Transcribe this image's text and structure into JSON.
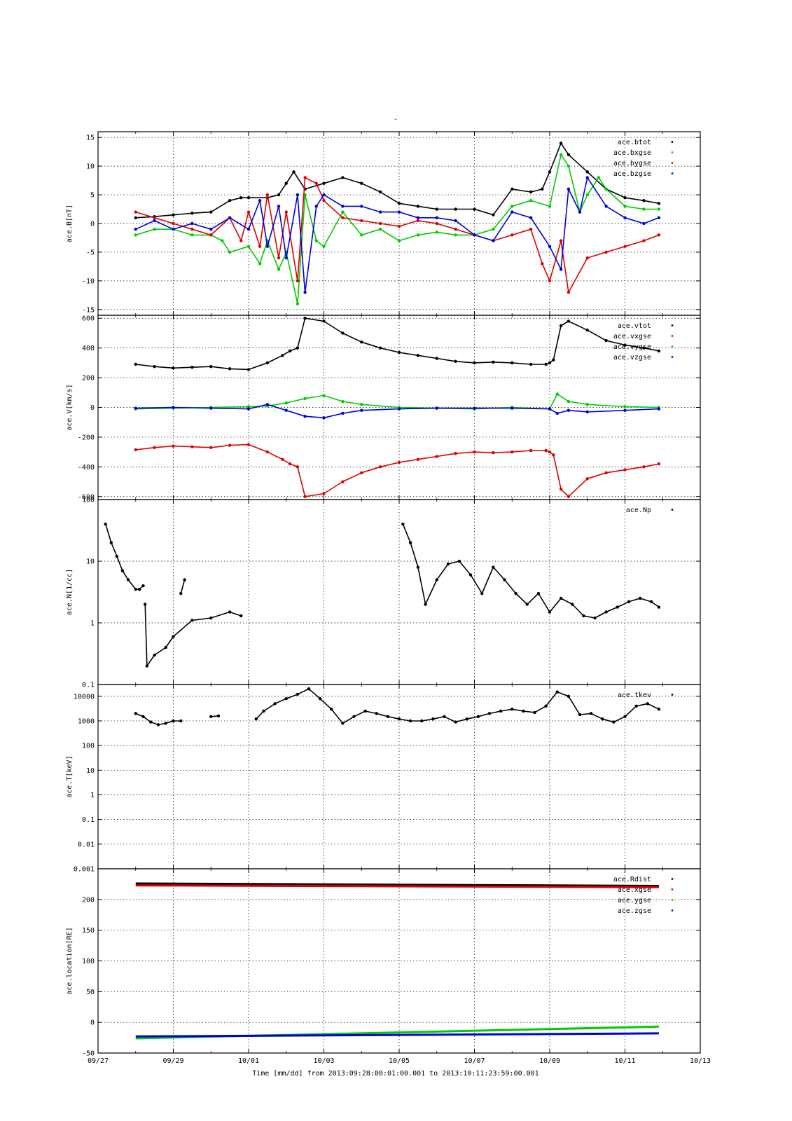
{
  "figure": {
    "title": "-",
    "xlabel": "Time [mm/dd]  from 2013:09:28:00:01:00.001  to  2013:10:11:23:59:00.001",
    "x_range": [
      "09/27",
      "10/13"
    ],
    "x_ticks": [
      "09/27",
      "09/29",
      "10/01",
      "10/03",
      "10/05",
      "10/07",
      "10/09",
      "10/11",
      "10/13"
    ],
    "grid": true,
    "legend_position": "top-right"
  },
  "chart_data": [
    {
      "type": "scatter",
      "ylabel": "ace.B[nT]",
      "ylim": [
        -16,
        16
      ],
      "yscale": "linear",
      "yticks": [
        -15,
        -10,
        -5,
        0,
        5,
        10,
        15
      ],
      "grid": true,
      "legend_position": "top-right",
      "series": [
        {
          "name": "ace.btot",
          "color": "#000000",
          "x": [
            1.0,
            1.5,
            2.0,
            2.5,
            3.0,
            3.5,
            3.8,
            4.0,
            4.5,
            4.8,
            5.0,
            5.2,
            5.5,
            6.0,
            6.5,
            7.0,
            7.5,
            8.0,
            8.5,
            9.0,
            9.5,
            10.0,
            10.5,
            11.0,
            11.5,
            11.8,
            12.0,
            12.3,
            12.5,
            13.0,
            13.5,
            14.0,
            14.5,
            14.9
          ],
          "y": [
            1,
            1.2,
            1.5,
            1.8,
            2.0,
            4,
            4.5,
            4.5,
            4.5,
            5,
            7,
            9,
            6,
            7,
            8,
            7,
            5.5,
            3.5,
            3,
            2.5,
            2.5,
            2.5,
            1.5,
            6,
            5.5,
            6,
            9,
            14,
            12,
            9,
            6,
            4.5,
            4,
            3.5
          ]
        },
        {
          "name": "ace.bxgse",
          "color": "#00cc00",
          "x": [
            1.0,
            1.5,
            2.0,
            2.5,
            3.0,
            3.3,
            3.5,
            4.0,
            4.3,
            4.5,
            4.8,
            5.0,
            5.3,
            5.5,
            5.8,
            6.0,
            6.5,
            7.0,
            7.5,
            8.0,
            8.5,
            9.0,
            9.5,
            10.0,
            10.5,
            11.0,
            11.5,
            12.0,
            12.3,
            12.5,
            12.8,
            13.0,
            13.3,
            13.5,
            14.0,
            14.5,
            14.9
          ],
          "y": [
            -2,
            -1,
            -1,
            -2,
            -2,
            -3,
            -5,
            -4,
            -7,
            -3,
            -8,
            -5,
            -14,
            5,
            -3,
            -4,
            2,
            -2,
            -1,
            -3,
            -2,
            -1.5,
            -2,
            -2,
            -1,
            3,
            4,
            3,
            12,
            10,
            2,
            5,
            8,
            6,
            3,
            2.5,
            2.5
          ]
        },
        {
          "name": "ace.bygse",
          "color": "#dd0000",
          "x": [
            1.0,
            1.5,
            2.0,
            2.5,
            3.0,
            3.5,
            3.8,
            4.0,
            4.3,
            4.5,
            4.8,
            5.0,
            5.3,
            5.5,
            5.8,
            6.0,
            6.5,
            7.0,
            7.5,
            8.0,
            8.5,
            9.0,
            9.5,
            10.0,
            10.5,
            11.0,
            11.5,
            11.8,
            12.0,
            12.3,
            12.5,
            13.0,
            13.5,
            14.0,
            14.5,
            14.9
          ],
          "y": [
            2,
            1,
            0,
            -1,
            -2,
            1,
            -3,
            2,
            -4,
            5,
            -6,
            2,
            -10,
            8,
            7,
            4,
            1,
            0.5,
            0,
            -0.5,
            0.5,
            0,
            -1,
            -2,
            -3,
            -2,
            -1,
            -7,
            -10,
            -3,
            -12,
            -6,
            -5,
            -4,
            -3,
            -2
          ]
        },
        {
          "name": "ace.bzgse",
          "color": "#0000dd",
          "x": [
            1.0,
            1.5,
            2.0,
            2.5,
            3.0,
            3.5,
            4.0,
            4.3,
            4.5,
            4.8,
            5.0,
            5.3,
            5.5,
            5.8,
            6.0,
            6.5,
            7.0,
            7.5,
            8.0,
            8.5,
            9.0,
            9.5,
            10.0,
            10.5,
            11.0,
            11.5,
            12.0,
            12.3,
            12.5,
            12.8,
            13.0,
            13.5,
            14.0,
            14.5,
            14.9
          ],
          "y": [
            -1,
            0.5,
            -1,
            0,
            -1,
            1,
            -1,
            4,
            -4,
            3,
            -6,
            5,
            -12,
            3,
            5,
            3,
            3,
            2,
            2,
            1,
            1,
            0.5,
            -2,
            -3,
            2,
            1,
            -4,
            -8,
            6,
            2,
            8,
            3,
            1,
            0,
            1
          ]
        }
      ]
    },
    {
      "type": "scatter",
      "ylabel": "ace.V[km/s]",
      "ylim": [
        -620,
        620
      ],
      "yscale": "linear",
      "yticks": [
        -600,
        -400,
        -200,
        0,
        200,
        400,
        600
      ],
      "grid": true,
      "legend_position": "top-right",
      "series": [
        {
          "name": "ace.vtot",
          "color": "#000000",
          "x": [
            1.0,
            1.5,
            2.0,
            2.5,
            3.0,
            3.5,
            4.0,
            4.5,
            4.9,
            5.1,
            5.3,
            5.5,
            6.0,
            6.5,
            7.0,
            7.5,
            8.0,
            8.5,
            9.0,
            9.5,
            10.0,
            10.5,
            11.0,
            11.5,
            11.9,
            12.0,
            12.1,
            12.3,
            12.5,
            13.0,
            13.5,
            14.0,
            14.5,
            14.9
          ],
          "y": [
            290,
            275,
            265,
            270,
            275,
            260,
            255,
            300,
            350,
            380,
            400,
            600,
            580,
            500,
            440,
            400,
            370,
            350,
            330,
            310,
            300,
            305,
            300,
            290,
            290,
            300,
            320,
            550,
            580,
            520,
            450,
            420,
            400,
            380
          ]
        },
        {
          "name": "ace.vxgse",
          "color": "#dd0000",
          "x": [
            1.0,
            1.5,
            2.0,
            2.5,
            3.0,
            3.5,
            4.0,
            4.5,
            4.9,
            5.1,
            5.3,
            5.5,
            6.0,
            6.5,
            7.0,
            7.5,
            8.0,
            8.5,
            9.0,
            9.5,
            10.0,
            10.5,
            11.0,
            11.5,
            11.9,
            12.0,
            12.1,
            12.3,
            12.5,
            13.0,
            13.5,
            14.0,
            14.5,
            14.9
          ],
          "y": [
            -285,
            -270,
            -260,
            -265,
            -270,
            -255,
            -250,
            -300,
            -350,
            -380,
            -400,
            -600,
            -580,
            -500,
            -440,
            -400,
            -370,
            -350,
            -330,
            -310,
            -300,
            -305,
            -300,
            -290,
            -290,
            -300,
            -320,
            -550,
            -600,
            -480,
            -440,
            -420,
            -400,
            -380
          ]
        },
        {
          "name": "ace.vygse",
          "color": "#00cc00",
          "x": [
            1.0,
            2.0,
            3.0,
            4.0,
            4.5,
            5.0,
            5.5,
            6.0,
            6.5,
            7.0,
            8.0,
            9.0,
            10.0,
            11.0,
            12.0,
            12.2,
            12.5,
            13.0,
            14.0,
            14.9
          ],
          "y": [
            -10,
            -5,
            0,
            5,
            10,
            30,
            60,
            80,
            40,
            20,
            0,
            -5,
            -10,
            0,
            -10,
            90,
            40,
            20,
            5,
            0
          ]
        },
        {
          "name": "ace.vzgse",
          "color": "#0000dd",
          "x": [
            1.0,
            2.0,
            3.0,
            4.0,
            4.5,
            5.0,
            5.5,
            6.0,
            6.5,
            7.0,
            8.0,
            9.0,
            10.0,
            11.0,
            12.0,
            12.2,
            12.5,
            13.0,
            14.0,
            14.9
          ],
          "y": [
            -5,
            0,
            -5,
            -10,
            20,
            -20,
            -60,
            -70,
            -40,
            -20,
            -10,
            -5,
            -5,
            -5,
            -10,
            -40,
            -20,
            -30,
            -20,
            -10
          ]
        }
      ]
    },
    {
      "type": "scatter",
      "ylabel": "ace.N[1/cc]",
      "ylim": [
        0.1,
        100
      ],
      "yscale": "log",
      "yticks": [
        "0.1",
        "1",
        "10",
        "100"
      ],
      "grid": true,
      "legend_position": "top-right",
      "series": [
        {
          "name": "ace.Np",
          "color": "#000000",
          "segments": [
            {
              "x": [
                0.2,
                0.35,
                0.5,
                0.65,
                0.8,
                1.0,
                1.1,
                1.2
              ],
              "y": [
                40,
                20,
                12,
                7,
                5,
                3.5,
                3.5,
                4
              ]
            },
            {
              "x": [
                1.25,
                1.3,
                1.5,
                1.8,
                2.0,
                2.5,
                3.0,
                3.5,
                3.8
              ],
              "y": [
                2,
                0.2,
                0.3,
                0.4,
                0.6,
                1.1,
                1.2,
                1.5,
                1.3
              ]
            },
            {
              "x": [
                2.2,
                2.3
              ],
              "y": [
                3,
                5
              ]
            },
            {
              "x": [
                8.1,
                8.3,
                8.5,
                8.7,
                9.0,
                9.3,
                9.6,
                9.9,
                10.2,
                10.5,
                10.8,
                11.1,
                11.4,
                11.7,
                12.0,
                12.3,
                12.6,
                12.9,
                13.2,
                13.5,
                13.8,
                14.1,
                14.4,
                14.7,
                14.9
              ],
              "y": [
                40,
                20,
                8,
                2,
                5,
                9,
                10,
                6,
                3,
                8,
                5,
                3,
                2,
                3,
                1.5,
                2.5,
                2,
                1.3,
                1.2,
                1.5,
                1.8,
                2.2,
                2.5,
                2.2,
                1.8
              ]
            }
          ]
        }
      ]
    },
    {
      "type": "scatter",
      "ylabel": "ace.T[keV]",
      "ylim": [
        0.001,
        30000
      ],
      "yscale": "log",
      "yticks": [
        "0.001",
        "0.01",
        "0.1",
        "1",
        "10",
        "100",
        "1000",
        "10000"
      ],
      "grid": true,
      "legend_position": "top-right",
      "series": [
        {
          "name": "ace.tkev",
          "color": "#000000",
          "segments": [
            {
              "x": [
                1.0,
                1.2,
                1.4,
                1.6,
                1.8,
                2.0,
                2.2
              ],
              "y": [
                2000,
                1500,
                900,
                700,
                800,
                1000,
                1000
              ]
            },
            {
              "x": [
                3.0,
                3.2
              ],
              "y": [
                1500,
                1600
              ]
            },
            {
              "x": [
                4.2,
                4.4,
                4.7,
                5.0,
                5.3,
                5.6,
                5.9,
                6.2,
                6.5,
                6.8,
                7.1,
                7.4,
                7.7,
                8.0,
                8.3,
                8.6,
                8.9,
                9.2,
                9.5,
                9.8,
                10.1,
                10.4,
                10.7,
                11.0,
                11.3,
                11.6,
                11.9,
                12.2,
                12.5,
                12.8,
                13.1,
                13.4,
                13.7,
                14.0,
                14.3,
                14.6,
                14.9
              ],
              "y": [
                1200,
                2500,
                5000,
                8000,
                12000,
                20000,
                8000,
                3000,
                800,
                1500,
                2500,
                2000,
                1500,
                1200,
                1000,
                1000,
                1200,
                1500,
                900,
                1200,
                1500,
                2000,
                2500,
                3000,
                2500,
                2200,
                4000,
                15000,
                10000,
                1800,
                2000,
                1200,
                900,
                1500,
                4000,
                5000,
                3000
              ]
            }
          ]
        }
      ]
    },
    {
      "type": "line",
      "ylabel": "ace.location[RE]",
      "ylim": [
        -50,
        250
      ],
      "yscale": "linear",
      "yticks": [
        -50,
        0,
        50,
        100,
        150,
        200
      ],
      "grid": true,
      "legend_position": "top-right",
      "series": [
        {
          "name": "ace.Rdist",
          "color": "#000000",
          "x": [
            1.0,
            14.9
          ],
          "y": [
            226,
            222
          ]
        },
        {
          "name": "ace.xgse",
          "color": "#dd0000",
          "x": [
            1.0,
            14.9
          ],
          "y": [
            223,
            220
          ]
        },
        {
          "name": "ace.ygse",
          "color": "#00cc00",
          "x": [
            1.0,
            14.9
          ],
          "y": [
            -26,
            -7
          ]
        },
        {
          "name": "ace.zgse",
          "color": "#0000dd",
          "x": [
            1.0,
            14.9
          ],
          "y": [
            -23,
            -18
          ]
        }
      ]
    }
  ]
}
